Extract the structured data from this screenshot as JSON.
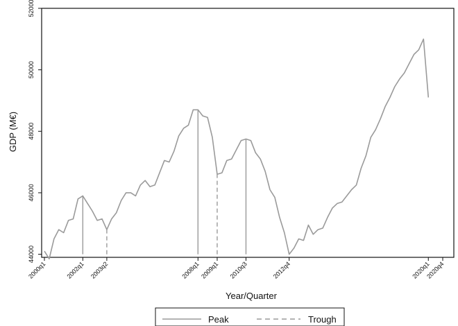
{
  "chart_data": {
    "type": "line",
    "xlabel": "Year/Quarter",
    "ylabel": "GDP (M€)",
    "ylim": [
      43900,
      52000
    ],
    "yticks": [
      44000,
      46000,
      48000,
      50000,
      52000
    ],
    "xtick_labels": [
      {
        "index": 0,
        "label": "2000q1"
      },
      {
        "index": 8,
        "label": "2002q1"
      },
      {
        "index": 13,
        "label": "2003q2"
      },
      {
        "index": 32,
        "label": "2008q1"
      },
      {
        "index": 36,
        "label": "2009q1"
      },
      {
        "index": 42,
        "label": "2010q3"
      },
      {
        "index": 51,
        "label": "2012q4"
      },
      {
        "index": 80,
        "label": "2020q1"
      },
      {
        "index": 83,
        "label": "2020q4"
      }
    ],
    "series": [
      {
        "x_start": "2000q1",
        "values": [
          44100,
          43850,
          44500,
          44800,
          44700,
          45100,
          45150,
          45800,
          45900,
          45650,
          45400,
          45100,
          45150,
          44800,
          45150,
          45350,
          45750,
          46000,
          46000,
          45900,
          46250,
          46400,
          46200,
          46250,
          46650,
          47050,
          47000,
          47350,
          47850,
          48100,
          48200,
          48700,
          48700,
          48500,
          48450,
          47800,
          46600,
          46650,
          47050,
          47100,
          47400,
          47700,
          47750,
          47700,
          47300,
          47100,
          46700,
          46100,
          45850,
          45200,
          44700,
          44000,
          44200,
          44500,
          44450,
          44950,
          44650,
          44800,
          44850,
          45200,
          45500,
          45650,
          45700,
          45900,
          46100,
          46250,
          46800,
          47200,
          47800,
          48050,
          48400,
          48800,
          49100,
          49450,
          49700,
          49900,
          50200,
          50500,
          50650,
          51000,
          49100
        ]
      }
    ],
    "peaks": [
      {
        "label": "2002q1",
        "index": 8
      },
      {
        "label": "2008q1",
        "index": 32
      },
      {
        "label": "2010q3",
        "index": 42
      }
    ],
    "troughs": [
      {
        "label": "2003q2",
        "index": 13
      },
      {
        "label": "2009q1",
        "index": 36
      },
      {
        "label": "2012q4",
        "index": 51
      }
    ],
    "legend": {
      "placement": "bottom",
      "entries": [
        {
          "label": "Peak",
          "style": "solid"
        },
        {
          "label": "Trough",
          "style": "dashed"
        }
      ]
    },
    "grid": false,
    "colors": {
      "line": "#9a9a9a",
      "axis": "#111111"
    }
  }
}
